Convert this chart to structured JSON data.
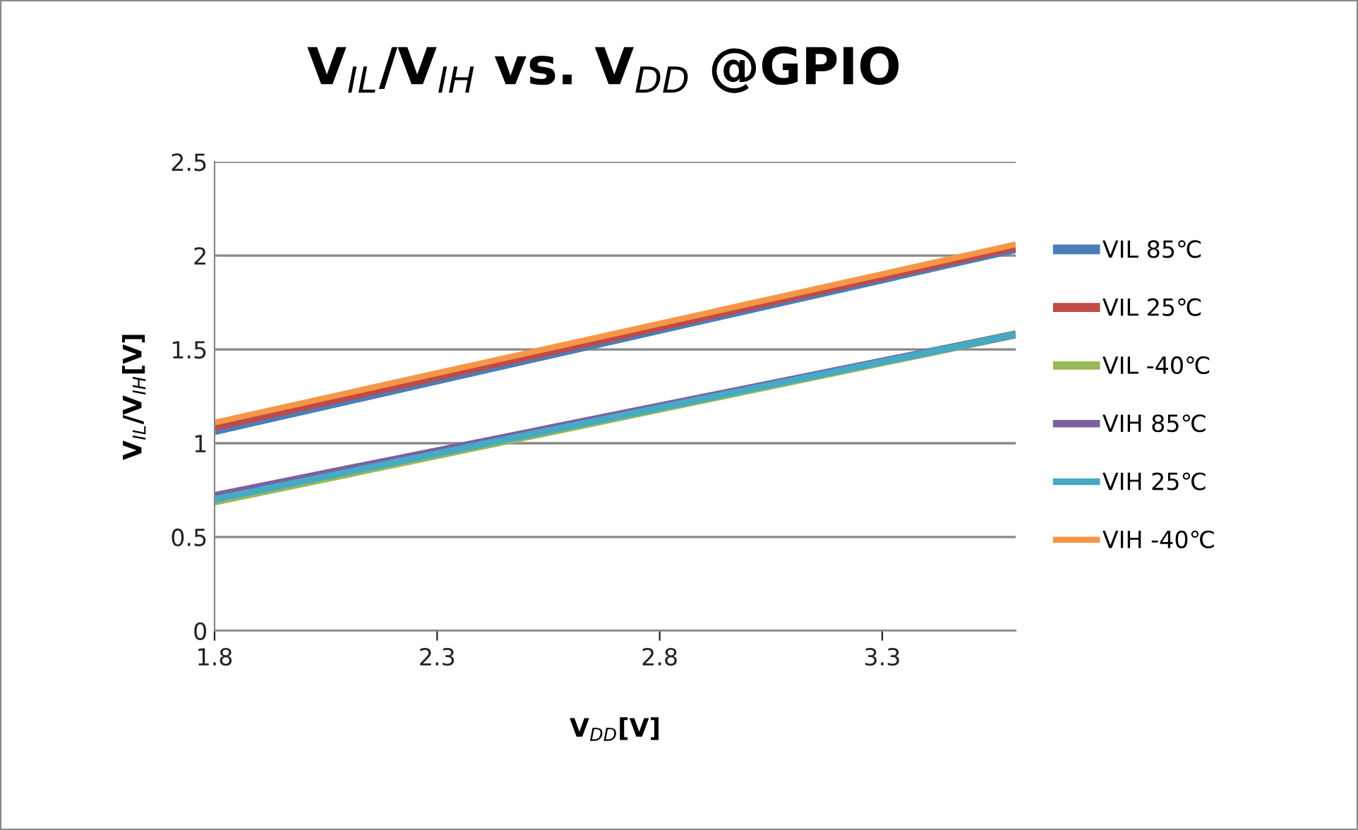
{
  "chart_data": {
    "type": "line",
    "title": "V$_{IL}$/V$_{IH}$ vs. V$_{DD}$ @GPIO",
    "xlabel": "V$_{DD}$[V]",
    "ylabel": "V$_{IL}$/V$_{IH}$[V]",
    "x": [
      1.8,
      3.6
    ],
    "series": [
      {
        "name": "VIL 85℃",
        "color": "#4a7ebb",
        "values": [
          1.07,
          2.04
        ]
      },
      {
        "name": "VIL 25℃",
        "color": "#be4b48",
        "values": [
          1.09,
          2.05
        ]
      },
      {
        "name": "VIL -40℃",
        "color": "#98b954",
        "values": [
          0.69,
          1.58
        ]
      },
      {
        "name": "VIH 85℃",
        "color": "#7d60a0",
        "values": [
          0.72,
          1.58
        ]
      },
      {
        "name": "VIH 25℃",
        "color": "#46aac5",
        "values": [
          0.7,
          1.58
        ]
      },
      {
        "name": "VIH -40℃",
        "color": "#f79646",
        "values": [
          1.11,
          2.06
        ]
      }
    ],
    "xlim": [
      1.8,
      3.6
    ],
    "xticks": [
      1.8,
      2.3,
      2.8,
      3.3
    ],
    "ylim": [
      0,
      2.5
    ],
    "yticks": [
      0,
      0.5,
      1,
      1.5,
      2,
      2.5
    ],
    "grid": "y",
    "legend": "right",
    "marker": "none",
    "line_style": "solid"
  }
}
